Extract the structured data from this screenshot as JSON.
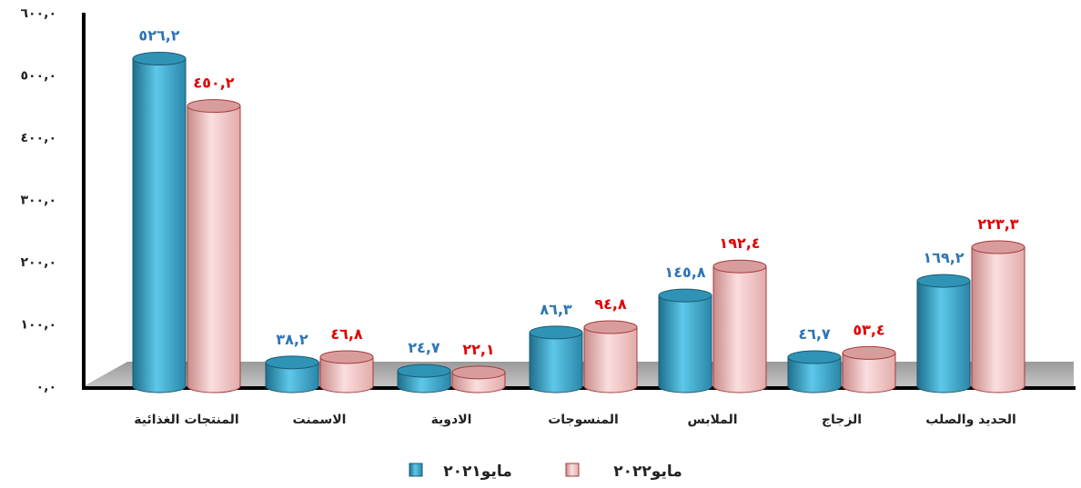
{
  "chart_data": {
    "type": "bar",
    "categories": [
      "المنتجات الغذائية",
      "الاسمنت",
      "الادوية",
      "المنسوجات",
      "الملابس",
      "الزجاج",
      "الحديد والصلب"
    ],
    "series": [
      {
        "name": "مايو٢٠٢١",
        "color": "#3aa6c9",
        "values": [
          526.2,
          38.2,
          24.7,
          86.3,
          145.8,
          46.7,
          169.2
        ],
        "labels": [
          "٥٢٦,٢",
          "٣٨,٢",
          "٢٤,٧",
          "٨٦,٣",
          "١٤٥,٨",
          "٤٦,٧",
          "١٦٩,٢"
        ],
        "label_color": "#2e75b6"
      },
      {
        "name": "مايو٢٠٢٢",
        "color": "#f5c4c4",
        "values": [
          450.2,
          46.8,
          22.1,
          94.8,
          192.4,
          53.4,
          223.3
        ],
        "labels": [
          "٤٥٠,٢",
          "٤٦,٨",
          "٢٢,١",
          "٩٤,٨",
          "١٩٢,٤",
          "٥٣,٤",
          "٢٢٣,٣"
        ],
        "label_color": "#e00000"
      }
    ],
    "ylim": [
      0,
      600
    ],
    "yticks": [
      0,
      100,
      200,
      300,
      400,
      500,
      600
    ],
    "ytick_labels": [
      "٠,٠",
      "١٠٠,٠",
      "٢٠٠,٠",
      "٣٠٠,٠",
      "٤٠٠,٠",
      "٥٠٠,٠",
      "٦٠٠,٠"
    ],
    "grid": false,
    "legend_position": "bottom",
    "three_d": true
  }
}
